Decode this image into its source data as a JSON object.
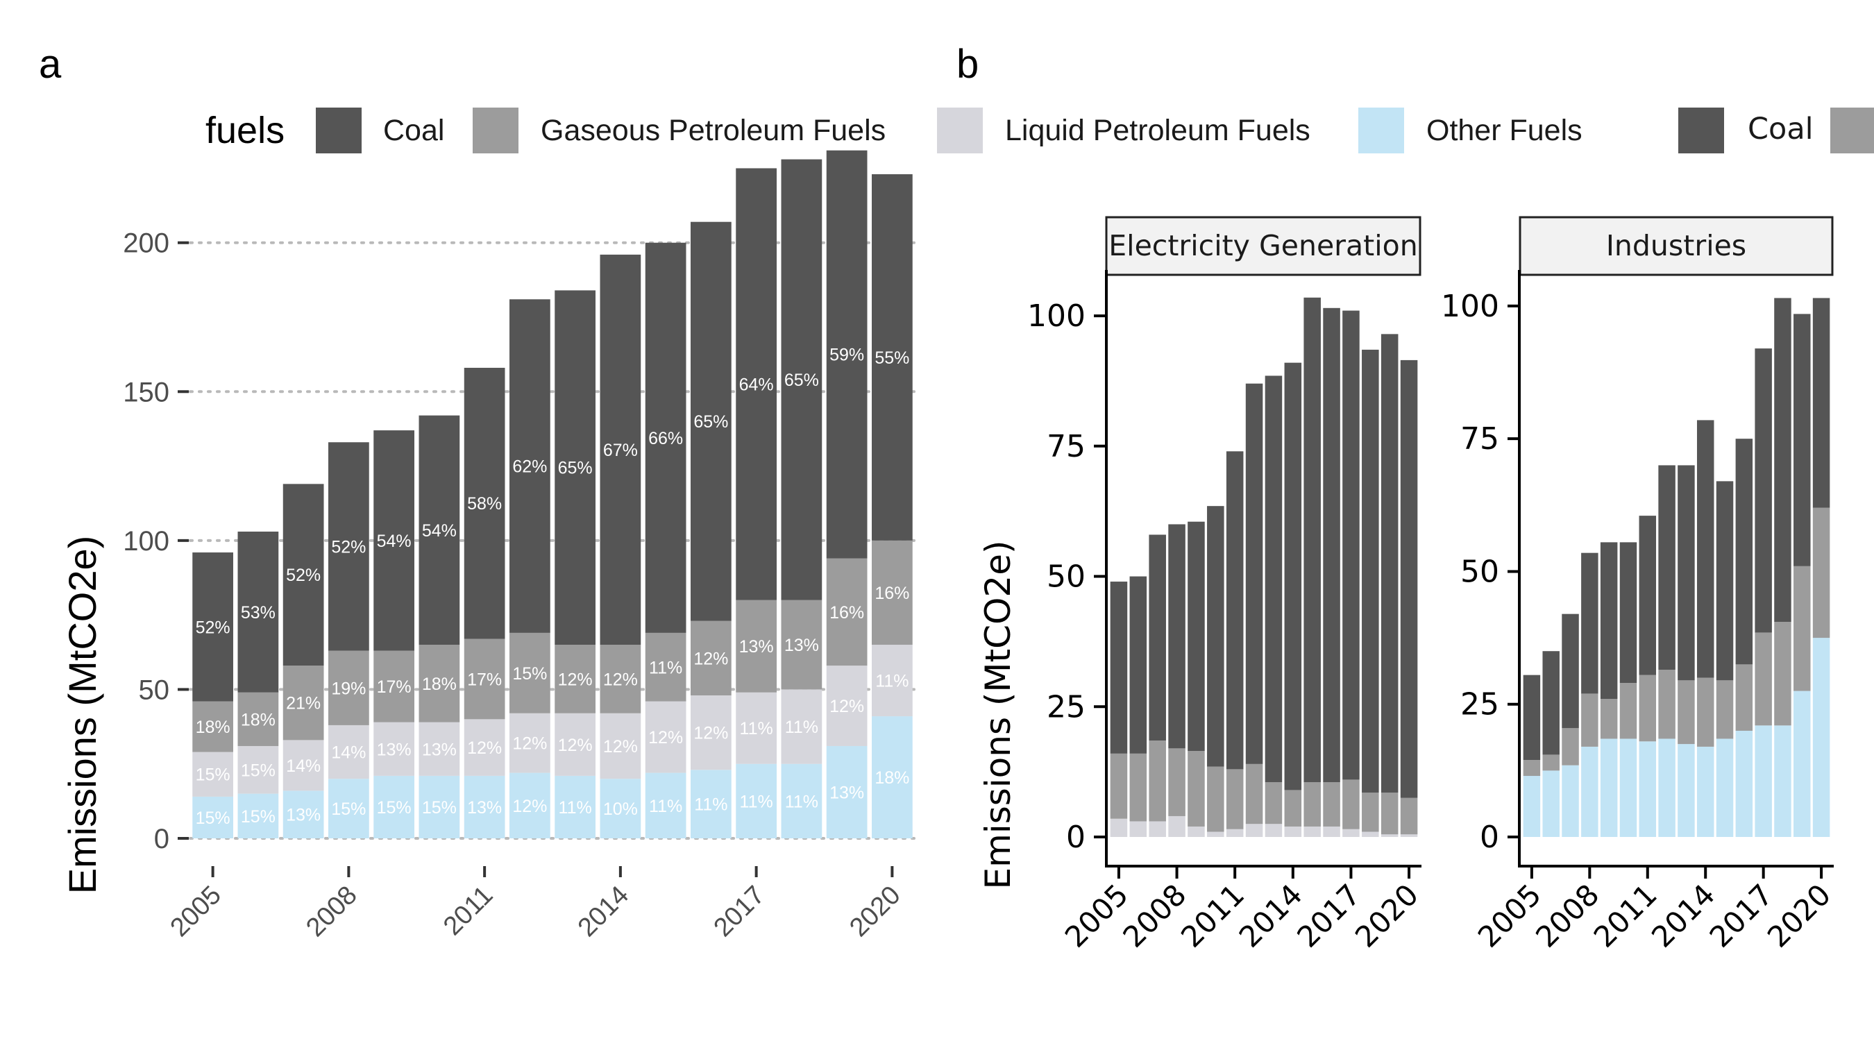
{
  "panel_a_letter": "a",
  "panel_b_letter": "b",
  "legend": {
    "title": "fuels",
    "items": [
      {
        "label": "Coal",
        "color": "#555555"
      },
      {
        "label": "Gaseous Petroleum Fuels",
        "color": "#9c9c9c"
      },
      {
        "label": "Liquid Petroleum Fuels",
        "color": "#d6d6dc"
      },
      {
        "label": "Other Fuels",
        "color": "#c2e4f5"
      }
    ]
  },
  "legend_b": {
    "items": [
      {
        "label": "Coal",
        "color": "#555555"
      },
      {
        "label": "",
        "color": "#9c9c9c"
      }
    ]
  },
  "chart_data": [
    {
      "type": "bar",
      "panel": "a",
      "stacked": true,
      "ylabel": "Emissions (MtCO2e)",
      "xlabel": "",
      "ylim": [
        0,
        230
      ],
      "yticks": [
        0,
        50,
        100,
        150,
        200
      ],
      "xticks": [
        2005,
        2008,
        2011,
        2014,
        2017,
        2020
      ],
      "grid": "horizontal dotted",
      "categories": [
        2005,
        2006,
        2007,
        2008,
        2009,
        2010,
        2011,
        2012,
        2013,
        2014,
        2015,
        2016,
        2017,
        2018,
        2019,
        2020
      ],
      "series": [
        {
          "name": "Other Fuels",
          "values": [
            14,
            15,
            16,
            20,
            21,
            21,
            21,
            22,
            21,
            20,
            22,
            23,
            25,
            25,
            31,
            41
          ],
          "labels": [
            "15%",
            "15%",
            "13%",
            "15%",
            "15%",
            "15%",
            "13%",
            "12%",
            "11%",
            "10%",
            "11%",
            "11%",
            "11%",
            "11%",
            "13%",
            "18%"
          ]
        },
        {
          "name": "Liquid Petroleum Fuels",
          "values": [
            15,
            16,
            17,
            18,
            18,
            18,
            19,
            20,
            21,
            22,
            24,
            25,
            24,
            25,
            27,
            24
          ],
          "labels": [
            "15%",
            "15%",
            "14%",
            "14%",
            "13%",
            "13%",
            "12%",
            "12%",
            "12%",
            "12%",
            "12%",
            "12%",
            "11%",
            "11%",
            "12%",
            "11%"
          ]
        },
        {
          "name": "Gaseous Petroleum Fuels",
          "values": [
            17,
            18,
            25,
            25,
            24,
            26,
            27,
            27,
            23,
            23,
            23,
            25,
            31,
            30,
            36,
            35
          ],
          "labels": [
            "18%",
            "18%",
            "21%",
            "19%",
            "17%",
            "18%",
            "17%",
            "15%",
            "12%",
            "12%",
            "11%",
            "12%",
            "13%",
            "13%",
            "16%",
            "16%"
          ]
        },
        {
          "name": "Coal",
          "values": [
            50,
            54,
            61,
            70,
            74,
            77,
            91,
            112,
            119,
            131,
            131,
            134,
            145,
            148,
            137,
            123
          ],
          "labels": [
            "52%",
            "53%",
            "52%",
            "52%",
            "54%",
            "54%",
            "58%",
            "62%",
            "65%",
            "67%",
            "66%",
            "65%",
            "64%",
            "65%",
            "59%",
            "55%"
          ]
        }
      ]
    },
    {
      "type": "bar",
      "panel": "b",
      "facet": "Electricity Generation",
      "stacked": true,
      "ylabel": "Emissions (MtCO2e)",
      "ylim": [
        0,
        108
      ],
      "yticks": [
        0,
        25,
        50,
        75,
        100
      ],
      "xticks": [
        2005,
        2008,
        2011,
        2014,
        2017,
        2020
      ],
      "categories": [
        2005,
        2006,
        2007,
        2008,
        2009,
        2010,
        2011,
        2012,
        2013,
        2014,
        2015,
        2016,
        2017,
        2018,
        2019,
        2020
      ],
      "series": [
        {
          "name": "Other Fuels",
          "values": [
            0,
            0,
            0,
            0,
            0,
            0,
            0,
            0,
            0,
            0,
            0,
            0,
            0,
            0,
            0,
            0
          ]
        },
        {
          "name": "Liquid Petroleum Fuels",
          "values": [
            3.5,
            3,
            3,
            4,
            2,
            1,
            1.5,
            2.5,
            2.5,
            2,
            2,
            2,
            1.5,
            1,
            0.5,
            0.5
          ]
        },
        {
          "name": "Gaseous Petroleum Fuels",
          "values": [
            12.5,
            13,
            15.5,
            13,
            14.5,
            12.5,
            11.5,
            11.5,
            8,
            7,
            8.5,
            8.5,
            9.5,
            7.5,
            8,
            7
          ]
        },
        {
          "name": "Coal",
          "values": [
            33,
            34,
            39.5,
            43,
            44,
            50,
            61,
            73,
            78,
            82,
            93,
            91,
            90,
            85,
            88,
            84
          ]
        }
      ]
    },
    {
      "type": "bar",
      "panel": "b",
      "facet": "Industries",
      "stacked": true,
      "ylabel": "",
      "ylim": [
        0,
        106
      ],
      "yticks": [
        0,
        25,
        50,
        75,
        100
      ],
      "xticks": [
        2005,
        2008,
        2011,
        2014,
        2017,
        2020
      ],
      "categories": [
        2005,
        2006,
        2007,
        2008,
        2009,
        2010,
        2011,
        2012,
        2013,
        2014,
        2015,
        2016,
        2017,
        2018,
        2019,
        2020
      ],
      "series": [
        {
          "name": "Other Fuels",
          "values": [
            11.5,
            12.5,
            13.5,
            17,
            18.5,
            18.5,
            18,
            18.5,
            17.5,
            17,
            18.5,
            20,
            21,
            21,
            27.5,
            37.5
          ]
        },
        {
          "name": "Liquid Petroleum Fuels",
          "values": [
            0,
            0,
            0,
            0,
            0,
            0,
            0,
            0,
            0,
            0,
            0,
            0,
            0,
            0,
            0,
            0
          ]
        },
        {
          "name": "Gaseous Petroleum Fuels",
          "values": [
            3,
            3,
            7,
            10,
            7.5,
            10.5,
            12.5,
            13,
            12,
            13,
            11,
            12.5,
            17.5,
            19.5,
            23.5,
            24.5
          ]
        },
        {
          "name": "Coal",
          "values": [
            16,
            19.5,
            21.5,
            26.5,
            29.5,
            26.5,
            30,
            38.5,
            40.5,
            48.5,
            37.5,
            42.5,
            53.5,
            61,
            47.5,
            39.5
          ]
        }
      ]
    }
  ]
}
